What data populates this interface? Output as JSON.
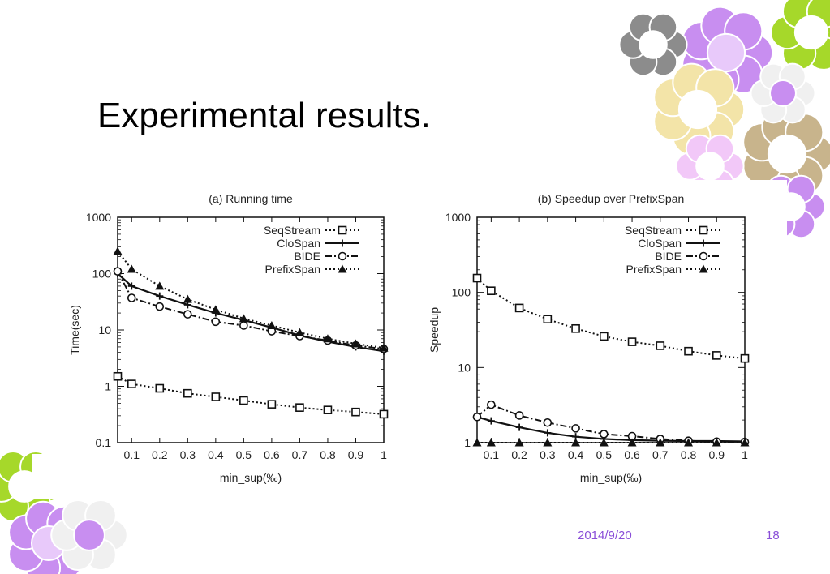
{
  "slide": {
    "title": "Experimental results.",
    "footer_date": "2014/9/20",
    "footer_page": "18"
  },
  "colors": {
    "flower_purple": "#c88ef0",
    "flower_green": "#a6d82a",
    "flower_cream": "#f3e4a8",
    "flower_grey": "#8c8c8c",
    "flower_tan": "#c8b48c",
    "footer_text": "#8a4fd8"
  },
  "chart_data": [
    {
      "type": "line",
      "title": "(a) Running time",
      "xlabel": "min_sup(‰)",
      "ylabel": "Time(sec)",
      "yscale": "log",
      "xlim": [
        0.05,
        1
      ],
      "ylim": [
        0.1,
        1000
      ],
      "xticks": [
        "0.1",
        "0.2",
        "0.3",
        "0.4",
        "0.5",
        "0.6",
        "0.7",
        "0.8",
        "0.9",
        "1"
      ],
      "yticks": [
        "0.1",
        "1",
        "10",
        "100",
        "1000"
      ],
      "legend_position": "top-right",
      "grid": false,
      "x": [
        0.05,
        0.1,
        0.2,
        0.3,
        0.4,
        0.5,
        0.6,
        0.7,
        0.8,
        0.9,
        1.0
      ],
      "series": [
        {
          "name": "SeqStream",
          "marker": "square",
          "dash": "dotted",
          "values": [
            1.5,
            1.1,
            0.92,
            0.75,
            0.65,
            0.56,
            0.48,
            0.42,
            0.38,
            0.35,
            0.32
          ]
        },
        {
          "name": "CloSpan",
          "marker": "plus",
          "dash": "solid",
          "values": [
            100,
            60,
            40,
            28,
            20,
            15,
            11,
            8,
            6.2,
            5,
            4.2
          ]
        },
        {
          "name": "BIDE",
          "marker": "circle",
          "dash": "dashdot",
          "values": [
            110,
            37,
            26,
            19,
            14,
            12,
            9.5,
            7.8,
            6.5,
            5.3,
            4.6
          ]
        },
        {
          "name": "PrefixSpan",
          "marker": "triangle",
          "dash": "dotted",
          "values": [
            250,
            120,
            60,
            35,
            23,
            16,
            12,
            9,
            7,
            5.7,
            4.8
          ]
        }
      ]
    },
    {
      "type": "line",
      "title": "(b) Speedup over PrefixSpan",
      "xlabel": "min_sup(‰)",
      "ylabel": "Speedup",
      "yscale": "log",
      "xlim": [
        0.05,
        1
      ],
      "ylim": [
        1,
        1000
      ],
      "xticks": [
        "0.1",
        "0.2",
        "0.3",
        "0.4",
        "0.5",
        "0.6",
        "0.7",
        "0.8",
        "0.9",
        "1"
      ],
      "yticks": [
        "1",
        "10",
        "100",
        "1000"
      ],
      "legend_position": "top-right",
      "grid": false,
      "x": [
        0.05,
        0.1,
        0.2,
        0.3,
        0.4,
        0.5,
        0.6,
        0.7,
        0.8,
        0.9,
        1.0
      ],
      "series": [
        {
          "name": "SeqStream",
          "marker": "square",
          "dash": "dotted",
          "values": [
            155,
            105,
            62,
            44,
            33,
            26,
            22,
            19.5,
            16.5,
            14.5,
            13.2
          ]
        },
        {
          "name": "CloSpan",
          "marker": "plus",
          "dash": "solid",
          "values": [
            2.2,
            1.95,
            1.6,
            1.35,
            1.2,
            1.12,
            1.08,
            1.06,
            1.05,
            1.05,
            1.04
          ]
        },
        {
          "name": "BIDE",
          "marker": "circle",
          "dash": "dashdot",
          "values": [
            2.2,
            3.2,
            2.3,
            1.85,
            1.55,
            1.3,
            1.22,
            1.12,
            1.06,
            1.03,
            1.02
          ]
        },
        {
          "name": "PrefixSpan",
          "marker": "triangle",
          "dash": "dotted",
          "values": [
            1,
            1,
            1,
            1,
            1,
            1,
            1,
            1,
            1,
            1,
            1
          ]
        }
      ]
    }
  ]
}
